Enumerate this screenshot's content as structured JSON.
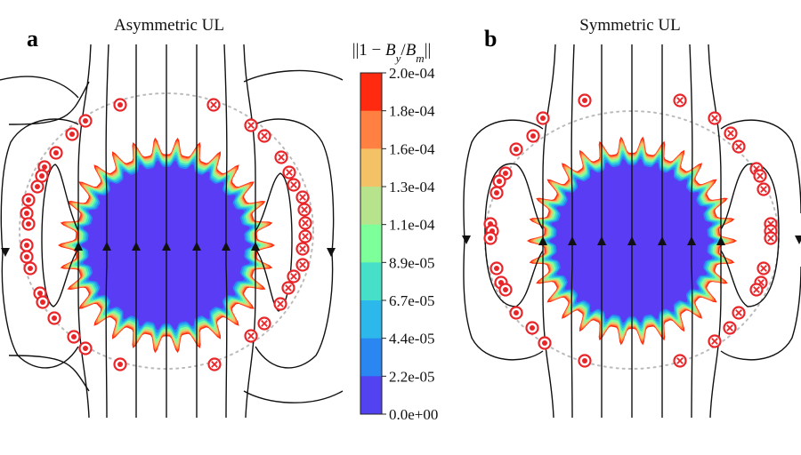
{
  "panels": [
    {
      "letter": "a",
      "title": "Asymmetric UL"
    },
    {
      "letter": "b",
      "title": "Symmetric UL"
    }
  ],
  "colorbar": {
    "title": "‖1 − B_y/B_m‖",
    "title_parts": {
      "pre": "||1 − ",
      "b1": "B",
      "s1": "y",
      "slash": "/",
      "b2": "B",
      "s2": "m",
      "post": "||"
    },
    "ticks": [
      "2.0e-04",
      "1.8e-04",
      "1.6e-04",
      "1.3e-04",
      "1.1e-04",
      "8.9e-05",
      "6.7e-05",
      "4.4e-05",
      "2.2e-05",
      "0.0e+00"
    ],
    "colors": [
      "#ff2a0f",
      "#ff8040",
      "#f4c266",
      "#b7e38c",
      "#7dff9a",
      "#46e0c8",
      "#2cb8ea",
      "#2a86f0",
      "#5242f0"
    ]
  },
  "legend_colors": {
    "uniform_region": "#5a3cf5",
    "coil": "#e8262a",
    "field_line": "#111111"
  }
}
